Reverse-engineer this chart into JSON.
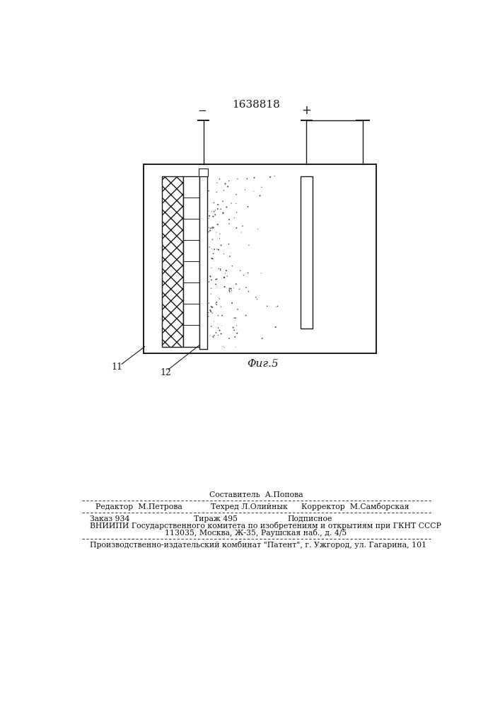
{
  "title_number": "1638818",
  "fig_label": "Φиг.5",
  "label_11": "11",
  "label_12": "12",
  "minus_sign": "−",
  "plus_sign": "+",
  "footer_sestavitel": "Составитель  А.Попова",
  "footer_redaktor": "Редактор  М.Петрова",
  "footer_tehred": "Техред Л.Олийнык",
  "footer_korrektor": "Корректор  М.Самборская",
  "footer_zakaz": "Заказ 934",
  "footer_tirazh": "Тираж 495",
  "footer_podpisnoe": "Подписное",
  "footer_vniip": "ВНИИПИ Государственного комитета по изобретениям и открытиям при ГКНТ СССР",
  "footer_addr": "113035, Москва, Ж-35, Раушская наб., д. 4/5",
  "footer_proizv": "Производственно-издательский комбинат \"Патент\", г. Ужгород, ул. Гагарина, 101",
  "bg_color": "#ffffff",
  "line_color": "#1a1a1a"
}
